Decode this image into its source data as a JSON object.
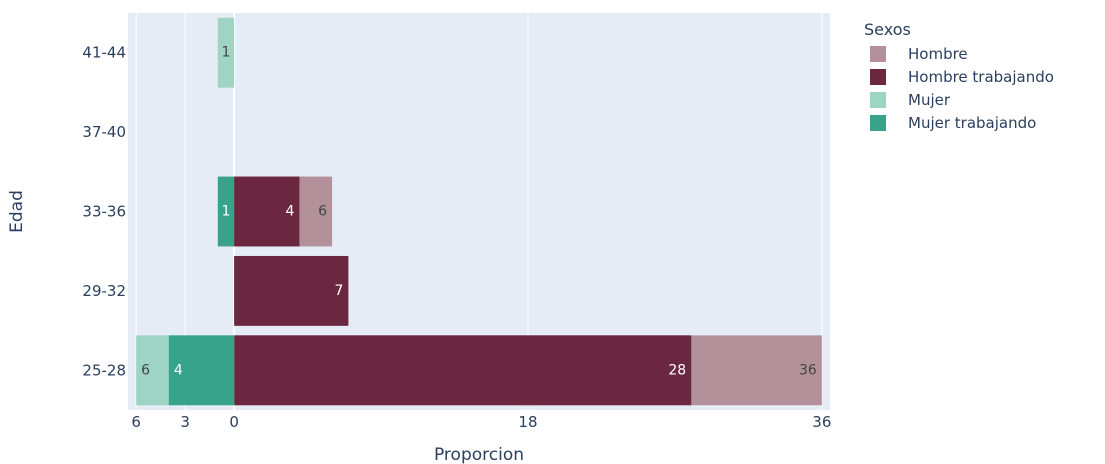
{
  "chart_data": {
    "type": "bar",
    "orientation": "horizontal",
    "barmode": "overlay",
    "categories": [
      "41-44",
      "37-40",
      "33-36",
      "29-32",
      "25-28"
    ],
    "xlabel": "Proporcion",
    "ylabel": "Edad",
    "x_tick_values": [
      -6,
      -3,
      0,
      18,
      36
    ],
    "x_tick_labels": [
      "6",
      "3",
      "0",
      "18",
      "36"
    ],
    "xlim": [
      -6.5,
      36.5
    ],
    "grid": true,
    "legend": {
      "title": "Sexos",
      "placement": "right"
    },
    "series": [
      {
        "name": "Hombre",
        "color": "#b3919b",
        "label_color": "#444444",
        "values": [
          0,
          0,
          6,
          0,
          36
        ],
        "labels": [
          "",
          "",
          "6",
          "",
          "36"
        ]
      },
      {
        "name": "Hombre trabajando",
        "color": "#6b2740",
        "label_color": "#ffffff",
        "values": [
          0,
          0,
          4,
          7,
          28
        ],
        "labels": [
          "",
          "",
          "4",
          "7",
          "28"
        ]
      },
      {
        "name": "Mujer",
        "color": "#9dd4c4",
        "label_color": "#444444",
        "values": [
          -1,
          0,
          0,
          0,
          -6
        ],
        "labels": [
          "1",
          "",
          "",
          "",
          "6"
        ]
      },
      {
        "name": "Mujer trabajando",
        "color": "#37a38b",
        "label_color": "#ffffff",
        "values": [
          0,
          0,
          -1,
          0,
          -4
        ],
        "labels": [
          "",
          "",
          "1",
          "",
          "4"
        ]
      }
    ]
  }
}
